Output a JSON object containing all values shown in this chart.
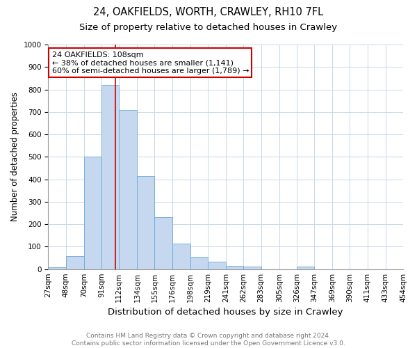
{
  "title1": "24, OAKFIELDS, WORTH, CRAWLEY, RH10 7FL",
  "title2": "Size of property relative to detached houses in Crawley",
  "xlabel": "Distribution of detached houses by size in Crawley",
  "ylabel": "Number of detached properties",
  "bin_edges": [
    27,
    48,
    70,
    91,
    112,
    134,
    155,
    176,
    198,
    219,
    241,
    262,
    283,
    305,
    326,
    347,
    369,
    390,
    411,
    433,
    454
  ],
  "bar_heights": [
    8,
    57,
    500,
    820,
    710,
    415,
    230,
    115,
    55,
    33,
    14,
    11,
    0,
    0,
    11,
    0,
    0,
    0,
    0,
    0
  ],
  "bar_facecolor": "#c5d8ef",
  "bar_edgecolor": "#6aaad4",
  "grid_color": "#c8d8e8",
  "bg_color": "#ffffff",
  "ref_line_x": 108,
  "ref_line_color": "#cc0000",
  "annotation_text": "24 OAKFIELDS: 108sqm\n← 38% of detached houses are smaller (1,141)\n60% of semi-detached houses are larger (1,789) →",
  "annotation_box_color": "#ffffff",
  "annotation_box_edgecolor": "#cc0000",
  "footnote": "Contains HM Land Registry data © Crown copyright and database right 2024.\nContains public sector information licensed under the Open Government Licence v3.0.",
  "ylim": [
    0,
    1000
  ],
  "title1_fontsize": 10.5,
  "title2_fontsize": 9.5,
  "xlabel_fontsize": 9.5,
  "ylabel_fontsize": 8.5,
  "tick_fontsize": 7.5,
  "annotation_fontsize": 8,
  "footnote_fontsize": 6.5
}
